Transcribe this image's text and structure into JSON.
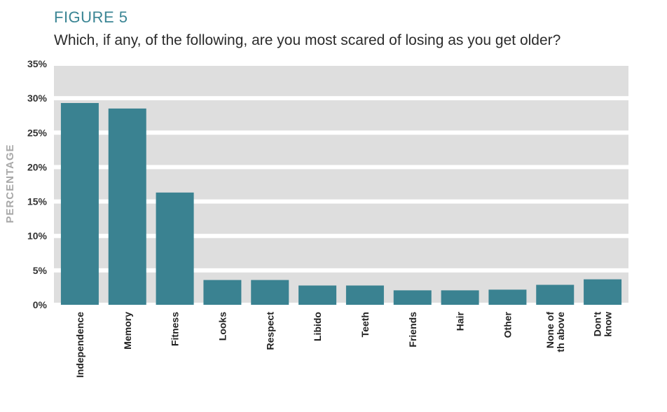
{
  "figure_label": "FIGURE 5",
  "title": "Which, if any, of the following, are you most scared of losing as you get older?",
  "chart_data": {
    "type": "bar",
    "ylabel": "PERCENTAGE",
    "xlabel": "",
    "ylim": [
      0,
      35
    ],
    "yticks": [
      "0%",
      "5%",
      "10%",
      "15%",
      "20%",
      "25%",
      "30%",
      "35%"
    ],
    "categories": [
      [
        "Independence"
      ],
      [
        "Memory"
      ],
      [
        "Fitness"
      ],
      [
        "Looks"
      ],
      [
        "Respect"
      ],
      [
        "Libido"
      ],
      [
        "Teeth"
      ],
      [
        "Friends"
      ],
      [
        "Hair"
      ],
      [
        "Other"
      ],
      [
        "None of",
        "th above"
      ],
      [
        "Don't",
        "know"
      ]
    ],
    "values": [
      29.3,
      28.5,
      16.3,
      3.6,
      3.6,
      2.8,
      2.8,
      2.1,
      2.1,
      2.2,
      2.9,
      3.7
    ],
    "colors": {
      "bar": "#3a8291",
      "band": "#dedede",
      "band_gap": "#ffffff"
    },
    "grid": true,
    "legend": "none"
  }
}
